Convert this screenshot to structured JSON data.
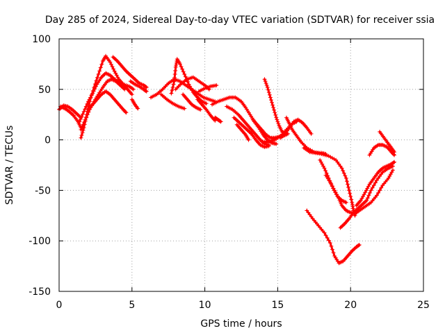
{
  "chart_data": {
    "type": "scatter",
    "title": "Day 285 of 2024, Sidereal Day-to-day VTEC variation (SDTVAR) for receiver ssia",
    "xlabel": "GPS time / hours",
    "ylabel": "SDTVAR / TECUs",
    "xlim": [
      0,
      25
    ],
    "ylim": [
      -150,
      100
    ],
    "xticks": [
      0,
      5,
      10,
      15,
      20,
      25
    ],
    "yticks": [
      100,
      50,
      0,
      -50,
      -100,
      -150
    ],
    "grid": true,
    "marker": "+",
    "color": "#ff0000",
    "series": [
      {
        "points": [
          [
            0.0,
            30
          ],
          [
            0.3,
            34
          ],
          [
            0.6,
            33
          ],
          [
            0.9,
            30
          ],
          [
            1.2,
            26
          ],
          [
            1.5,
            22
          ]
        ]
      },
      {
        "points": [
          [
            0.1,
            33
          ],
          [
            0.4,
            31
          ],
          [
            0.7,
            28
          ],
          [
            1.0,
            24
          ],
          [
            1.3,
            18
          ],
          [
            1.5,
            12
          ]
        ]
      },
      {
        "points": [
          [
            1.5,
            2
          ],
          [
            1.7,
            12
          ],
          [
            1.9,
            25
          ],
          [
            2.1,
            38
          ],
          [
            2.4,
            52
          ],
          [
            2.7,
            65
          ],
          [
            3.0,
            78
          ],
          [
            3.2,
            83
          ],
          [
            3.5,
            77
          ],
          [
            3.8,
            68
          ],
          [
            4.1,
            60
          ],
          [
            4.4,
            55
          ],
          [
            4.7,
            50
          ],
          [
            5.0,
            45
          ]
        ]
      },
      {
        "points": [
          [
            1.5,
            10
          ],
          [
            1.8,
            20
          ],
          [
            2.1,
            30
          ],
          [
            2.4,
            38
          ],
          [
            2.7,
            45
          ],
          [
            3.0,
            52
          ],
          [
            3.3,
            58
          ],
          [
            3.6,
            60
          ],
          [
            3.9,
            58
          ],
          [
            4.2,
            54
          ],
          [
            4.5,
            50
          ]
        ]
      },
      {
        "points": [
          [
            1.4,
            18
          ],
          [
            1.7,
            28
          ],
          [
            2.0,
            38
          ],
          [
            2.3,
            46
          ],
          [
            2.6,
            55
          ],
          [
            2.9,
            62
          ],
          [
            3.2,
            66
          ],
          [
            3.5,
            64
          ],
          [
            3.8,
            60
          ],
          [
            4.1,
            57
          ],
          [
            4.4,
            55
          ],
          [
            4.8,
            53
          ],
          [
            5.1,
            50
          ]
        ]
      },
      {
        "points": [
          [
            2.0,
            30
          ],
          [
            2.3,
            35
          ],
          [
            2.6,
            40
          ],
          [
            2.9,
            45
          ],
          [
            3.2,
            48
          ],
          [
            3.5,
            45
          ],
          [
            3.8,
            40
          ],
          [
            4.1,
            35
          ],
          [
            4.4,
            30
          ],
          [
            4.6,
            27
          ]
        ]
      },
      {
        "points": [
          [
            3.7,
            82
          ],
          [
            4.0,
            78
          ],
          [
            4.3,
            73
          ],
          [
            4.6,
            68
          ],
          [
            4.9,
            64
          ],
          [
            5.2,
            60
          ],
          [
            5.5,
            56
          ],
          [
            5.8,
            54
          ],
          [
            6.0,
            52
          ]
        ]
      },
      {
        "points": [
          [
            4.9,
            58
          ],
          [
            5.2,
            55
          ],
          [
            5.5,
            53
          ],
          [
            5.8,
            50
          ],
          [
            6.0,
            48
          ]
        ]
      },
      {
        "points": [
          [
            5.0,
            40
          ],
          [
            5.2,
            35
          ],
          [
            5.4,
            31
          ]
        ]
      },
      {
        "points": [
          [
            6.3,
            42
          ],
          [
            6.7,
            45
          ],
          [
            7.1,
            50
          ],
          [
            7.5,
            56
          ],
          [
            7.9,
            60
          ],
          [
            8.3,
            58
          ],
          [
            8.7,
            54
          ],
          [
            9.1,
            50
          ],
          [
            9.5,
            46
          ],
          [
            9.9,
            42
          ],
          [
            10.3,
            40
          ],
          [
            10.7,
            38
          ]
        ]
      },
      {
        "points": [
          [
            7.0,
            45
          ],
          [
            7.4,
            40
          ],
          [
            7.8,
            36
          ],
          [
            8.2,
            33
          ],
          [
            8.6,
            31
          ]
        ]
      },
      {
        "points": [
          [
            7.7,
            46
          ],
          [
            7.9,
            58
          ],
          [
            8.0,
            72
          ],
          [
            8.1,
            80
          ],
          [
            8.3,
            75
          ],
          [
            8.6,
            65
          ],
          [
            8.9,
            55
          ],
          [
            9.2,
            47
          ],
          [
            9.5,
            42
          ],
          [
            9.8,
            38
          ],
          [
            10.1,
            36
          ]
        ]
      },
      {
        "points": [
          [
            8.0,
            50
          ],
          [
            8.4,
            56
          ],
          [
            8.8,
            60
          ],
          [
            9.2,
            62
          ],
          [
            9.6,
            58
          ],
          [
            10.0,
            54
          ],
          [
            10.3,
            50
          ]
        ]
      },
      {
        "points": [
          [
            8.5,
            45
          ],
          [
            8.8,
            40
          ],
          [
            9.1,
            35
          ],
          [
            9.4,
            32
          ],
          [
            9.7,
            30
          ]
        ]
      },
      {
        "points": [
          [
            9.6,
            48
          ],
          [
            10.0,
            51
          ],
          [
            10.4,
            53
          ],
          [
            10.8,
            54
          ]
        ]
      },
      {
        "points": [
          [
            9.5,
            40
          ],
          [
            9.8,
            35
          ],
          [
            10.1,
            30
          ],
          [
            10.4,
            24
          ],
          [
            10.7,
            19
          ]
        ]
      },
      {
        "points": [
          [
            10.5,
            35
          ],
          [
            10.9,
            38
          ],
          [
            11.3,
            40
          ],
          [
            11.7,
            42
          ],
          [
            12.1,
            42
          ],
          [
            12.5,
            38
          ],
          [
            12.8,
            32
          ],
          [
            13.1,
            25
          ],
          [
            13.4,
            18
          ],
          [
            13.7,
            12
          ],
          [
            14.0,
            5
          ],
          [
            14.3,
            0
          ],
          [
            14.6,
            -3
          ],
          [
            14.9,
            -4
          ]
        ]
      },
      {
        "points": [
          [
            11.5,
            33
          ],
          [
            11.9,
            30
          ],
          [
            12.3,
            25
          ],
          [
            12.6,
            20
          ],
          [
            12.9,
            15
          ],
          [
            13.2,
            10
          ],
          [
            13.5,
            5
          ],
          [
            13.8,
            0
          ],
          [
            14.1,
            -4
          ],
          [
            14.4,
            -5
          ]
        ]
      },
      {
        "points": [
          [
            12.0,
            22
          ],
          [
            12.3,
            18
          ],
          [
            12.6,
            14
          ],
          [
            12.9,
            10
          ],
          [
            13.2,
            6
          ],
          [
            13.5,
            0
          ],
          [
            13.8,
            -5
          ],
          [
            14.1,
            -7
          ],
          [
            14.4,
            -6
          ]
        ]
      },
      {
        "points": [
          [
            12.2,
            15
          ],
          [
            12.5,
            10
          ],
          [
            12.8,
            5
          ],
          [
            13.0,
            0
          ]
        ]
      },
      {
        "points": [
          [
            13.3,
            20
          ],
          [
            13.6,
            15
          ],
          [
            13.9,
            10
          ],
          [
            14.2,
            5
          ],
          [
            14.5,
            2
          ],
          [
            14.8,
            2
          ],
          [
            15.1,
            3
          ],
          [
            15.4,
            4
          ],
          [
            15.7,
            6
          ]
        ]
      },
      {
        "points": [
          [
            14.0,
            -2
          ],
          [
            14.4,
            -2
          ],
          [
            14.8,
            0
          ],
          [
            15.2,
            4
          ],
          [
            15.6,
            10
          ],
          [
            16.0,
            16
          ],
          [
            16.3,
            18
          ]
        ]
      },
      {
        "points": [
          [
            14.1,
            60
          ],
          [
            14.3,
            52
          ],
          [
            14.5,
            42
          ],
          [
            14.7,
            32
          ],
          [
            14.9,
            22
          ],
          [
            15.1,
            14
          ],
          [
            15.3,
            8
          ],
          [
            15.5,
            6
          ]
        ]
      },
      {
        "points": [
          [
            15.2,
            2
          ],
          [
            15.5,
            6
          ],
          [
            15.8,
            12
          ],
          [
            16.1,
            18
          ],
          [
            16.4,
            20
          ],
          [
            16.7,
            17
          ],
          [
            17.0,
            12
          ],
          [
            17.3,
            6
          ]
        ]
      },
      {
        "points": [
          [
            15.6,
            22
          ],
          [
            15.8,
            16
          ],
          [
            16.0,
            10
          ],
          [
            16.3,
            4
          ],
          [
            16.6,
            -2
          ],
          [
            17.0,
            -8
          ],
          [
            17.5,
            -12
          ],
          [
            18.0,
            -14
          ],
          [
            18.5,
            -16
          ],
          [
            19.0,
            -20
          ],
          [
            19.4,
            -28
          ],
          [
            19.7,
            -38
          ],
          [
            19.9,
            -50
          ],
          [
            20.1,
            -62
          ],
          [
            20.2,
            -70
          ],
          [
            20.3,
            -75
          ]
        ]
      },
      {
        "points": [
          [
            16.8,
            -8
          ],
          [
            17.2,
            -12
          ],
          [
            17.6,
            -13
          ],
          [
            18.0,
            -13
          ],
          [
            18.3,
            -14
          ]
        ]
      },
      {
        "points": [
          [
            17.9,
            -20
          ],
          [
            18.2,
            -28
          ],
          [
            18.5,
            -38
          ],
          [
            18.8,
            -48
          ],
          [
            19.1,
            -56
          ],
          [
            19.4,
            -60
          ],
          [
            19.7,
            -62
          ]
        ]
      },
      {
        "points": [
          [
            18.3,
            -35
          ],
          [
            18.6,
            -42
          ],
          [
            18.9,
            -50
          ],
          [
            19.2,
            -58
          ],
          [
            19.4,
            -65
          ],
          [
            19.7,
            -70
          ],
          [
            20.0,
            -72
          ],
          [
            20.3,
            -73
          ],
          [
            20.6,
            -70
          ],
          [
            21.0,
            -66
          ],
          [
            21.4,
            -62
          ],
          [
            21.8,
            -55
          ],
          [
            22.2,
            -45
          ],
          [
            22.6,
            -38
          ],
          [
            22.9,
            -30
          ]
        ]
      },
      {
        "points": [
          [
            17.0,
            -70
          ],
          [
            17.4,
            -78
          ],
          [
            17.8,
            -85
          ],
          [
            18.2,
            -92
          ],
          [
            18.6,
            -102
          ],
          [
            18.9,
            -115
          ],
          [
            19.2,
            -122
          ],
          [
            19.5,
            -120
          ],
          [
            19.8,
            -115
          ],
          [
            20.1,
            -110
          ],
          [
            20.4,
            -106
          ],
          [
            20.6,
            -104
          ]
        ]
      },
      {
        "points": [
          [
            19.3,
            -87
          ],
          [
            19.6,
            -83
          ],
          [
            19.9,
            -78
          ],
          [
            20.2,
            -72
          ],
          [
            20.5,
            -68
          ],
          [
            20.8,
            -64
          ],
          [
            21.1,
            -60
          ],
          [
            21.4,
            -50
          ],
          [
            21.8,
            -40
          ],
          [
            22.2,
            -32
          ],
          [
            22.6,
            -28
          ],
          [
            22.9,
            -26
          ]
        ]
      },
      {
        "points": [
          [
            20.4,
            -65
          ],
          [
            20.7,
            -60
          ],
          [
            21.0,
            -52
          ],
          [
            21.3,
            -44
          ],
          [
            21.6,
            -38
          ],
          [
            21.9,
            -32
          ],
          [
            22.2,
            -28
          ],
          [
            22.5,
            -26
          ],
          [
            22.8,
            -24
          ],
          [
            23.0,
            -22
          ]
        ]
      },
      {
        "points": [
          [
            21.3,
            -15
          ],
          [
            21.6,
            -8
          ],
          [
            21.9,
            -5
          ],
          [
            22.2,
            -5
          ],
          [
            22.5,
            -7
          ],
          [
            22.8,
            -12
          ],
          [
            23.0,
            -15
          ]
        ]
      },
      {
        "points": [
          [
            22.0,
            8
          ],
          [
            22.3,
            2
          ],
          [
            22.6,
            -4
          ],
          [
            22.8,
            -8
          ],
          [
            23.0,
            -12
          ]
        ]
      },
      {
        "points": [
          [
            10.7,
            22
          ],
          [
            10.9,
            20
          ],
          [
            11.1,
            18
          ]
        ]
      }
    ]
  }
}
